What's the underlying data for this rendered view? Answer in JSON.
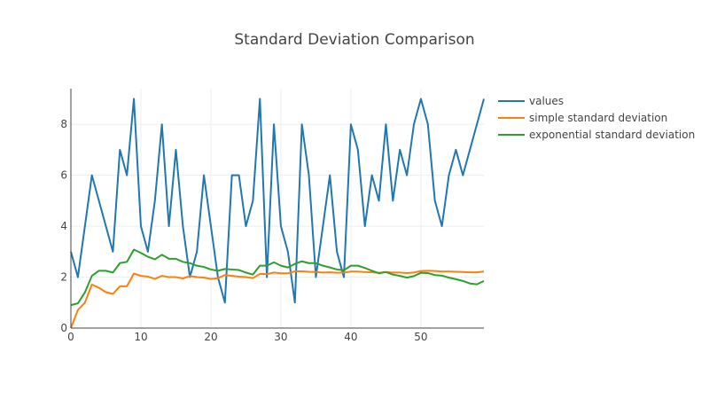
{
  "chart_data": {
    "type": "line",
    "title": "Standard Deviation Comparison",
    "xlabel": "",
    "ylabel": "",
    "xlim": [
      0,
      59
    ],
    "ylim": [
      0,
      9.4
    ],
    "x_ticks": [
      0,
      10,
      20,
      30,
      40,
      50
    ],
    "y_ticks": [
      0,
      2,
      4,
      6,
      8
    ],
    "grid": true,
    "legend_position": "top-right",
    "series": [
      {
        "name": "values",
        "color": "#1f77b4",
        "values": [
          3,
          2,
          4,
          6,
          5,
          4,
          3,
          7,
          6,
          9,
          4,
          3,
          5,
          8,
          4,
          7,
          4,
          2,
          3,
          6,
          4,
          2,
          1,
          6,
          6,
          4,
          5,
          9,
          2,
          8,
          4,
          3,
          1,
          8,
          6,
          2,
          4,
          6,
          3,
          2,
          8,
          7,
          4,
          6,
          5,
          8,
          5,
          7,
          6,
          8,
          9,
          8,
          5,
          4,
          6,
          7,
          6,
          7,
          8,
          9
        ]
      },
      {
        "name": "simple standard deviation",
        "color": "#ff7f0e",
        "values": [
          0,
          0.71,
          1.0,
          1.71,
          1.58,
          1.41,
          1.34,
          1.64,
          1.64,
          2.14,
          2.05,
          2.02,
          1.93,
          2.05,
          2.0,
          2.0,
          1.95,
          2.04,
          2.0,
          1.98,
          1.93,
          1.96,
          2.08,
          2.05,
          2.02,
          2.0,
          1.96,
          2.13,
          2.12,
          2.18,
          2.15,
          2.15,
          2.23,
          2.23,
          2.21,
          2.2,
          2.18,
          2.19,
          2.17,
          2.18,
          2.22,
          2.22,
          2.2,
          2.19,
          2.17,
          2.2,
          2.18,
          2.18,
          2.16,
          2.18,
          2.24,
          2.25,
          2.24,
          2.22,
          2.22,
          2.21,
          2.2,
          2.19,
          2.19,
          2.22
        ]
      },
      {
        "name": "exponential standard deviation",
        "color": "#2ca02c",
        "values": [
          0.9,
          0.97,
          1.4,
          2.05,
          2.25,
          2.25,
          2.18,
          2.55,
          2.6,
          3.08,
          2.95,
          2.8,
          2.7,
          2.88,
          2.72,
          2.72,
          2.6,
          2.55,
          2.45,
          2.4,
          2.3,
          2.25,
          2.32,
          2.3,
          2.28,
          2.18,
          2.1,
          2.45,
          2.45,
          2.58,
          2.45,
          2.38,
          2.52,
          2.62,
          2.55,
          2.55,
          2.45,
          2.38,
          2.3,
          2.27,
          2.45,
          2.45,
          2.36,
          2.25,
          2.15,
          2.2,
          2.1,
          2.05,
          1.98,
          2.04,
          2.17,
          2.16,
          2.08,
          2.06,
          1.98,
          1.92,
          1.85,
          1.75,
          1.72,
          1.85
        ]
      }
    ]
  }
}
